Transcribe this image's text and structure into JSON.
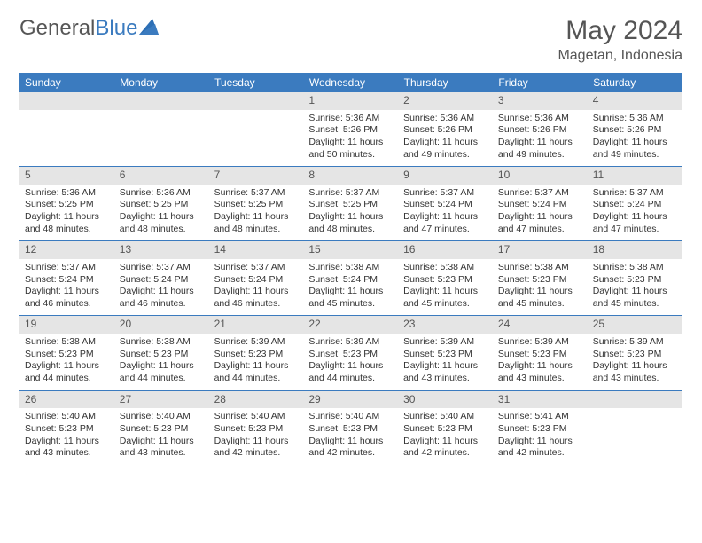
{
  "brand": {
    "part1": "General",
    "part2": "Blue"
  },
  "title": "May 2024",
  "location": "Magetan, Indonesia",
  "colors": {
    "header_bg": "#3b7bbf",
    "header_text": "#ffffff",
    "daynum_bg": "#e5e5e5",
    "row_border": "#3b7bbf",
    "text": "#333333",
    "title_text": "#555555"
  },
  "daysOfWeek": [
    "Sunday",
    "Monday",
    "Tuesday",
    "Wednesday",
    "Thursday",
    "Friday",
    "Saturday"
  ],
  "weeks": [
    [
      null,
      null,
      null,
      {
        "n": "1",
        "sr": "5:36 AM",
        "ss": "5:26 PM",
        "dl": "11 hours and 50 minutes."
      },
      {
        "n": "2",
        "sr": "5:36 AM",
        "ss": "5:26 PM",
        "dl": "11 hours and 49 minutes."
      },
      {
        "n": "3",
        "sr": "5:36 AM",
        "ss": "5:26 PM",
        "dl": "11 hours and 49 minutes."
      },
      {
        "n": "4",
        "sr": "5:36 AM",
        "ss": "5:26 PM",
        "dl": "11 hours and 49 minutes."
      }
    ],
    [
      {
        "n": "5",
        "sr": "5:36 AM",
        "ss": "5:25 PM",
        "dl": "11 hours and 48 minutes."
      },
      {
        "n": "6",
        "sr": "5:36 AM",
        "ss": "5:25 PM",
        "dl": "11 hours and 48 minutes."
      },
      {
        "n": "7",
        "sr": "5:37 AM",
        "ss": "5:25 PM",
        "dl": "11 hours and 48 minutes."
      },
      {
        "n": "8",
        "sr": "5:37 AM",
        "ss": "5:25 PM",
        "dl": "11 hours and 48 minutes."
      },
      {
        "n": "9",
        "sr": "5:37 AM",
        "ss": "5:24 PM",
        "dl": "11 hours and 47 minutes."
      },
      {
        "n": "10",
        "sr": "5:37 AM",
        "ss": "5:24 PM",
        "dl": "11 hours and 47 minutes."
      },
      {
        "n": "11",
        "sr": "5:37 AM",
        "ss": "5:24 PM",
        "dl": "11 hours and 47 minutes."
      }
    ],
    [
      {
        "n": "12",
        "sr": "5:37 AM",
        "ss": "5:24 PM",
        "dl": "11 hours and 46 minutes."
      },
      {
        "n": "13",
        "sr": "5:37 AM",
        "ss": "5:24 PM",
        "dl": "11 hours and 46 minutes."
      },
      {
        "n": "14",
        "sr": "5:37 AM",
        "ss": "5:24 PM",
        "dl": "11 hours and 46 minutes."
      },
      {
        "n": "15",
        "sr": "5:38 AM",
        "ss": "5:24 PM",
        "dl": "11 hours and 45 minutes."
      },
      {
        "n": "16",
        "sr": "5:38 AM",
        "ss": "5:23 PM",
        "dl": "11 hours and 45 minutes."
      },
      {
        "n": "17",
        "sr": "5:38 AM",
        "ss": "5:23 PM",
        "dl": "11 hours and 45 minutes."
      },
      {
        "n": "18",
        "sr": "5:38 AM",
        "ss": "5:23 PM",
        "dl": "11 hours and 45 minutes."
      }
    ],
    [
      {
        "n": "19",
        "sr": "5:38 AM",
        "ss": "5:23 PM",
        "dl": "11 hours and 44 minutes."
      },
      {
        "n": "20",
        "sr": "5:38 AM",
        "ss": "5:23 PM",
        "dl": "11 hours and 44 minutes."
      },
      {
        "n": "21",
        "sr": "5:39 AM",
        "ss": "5:23 PM",
        "dl": "11 hours and 44 minutes."
      },
      {
        "n": "22",
        "sr": "5:39 AM",
        "ss": "5:23 PM",
        "dl": "11 hours and 44 minutes."
      },
      {
        "n": "23",
        "sr": "5:39 AM",
        "ss": "5:23 PM",
        "dl": "11 hours and 43 minutes."
      },
      {
        "n": "24",
        "sr": "5:39 AM",
        "ss": "5:23 PM",
        "dl": "11 hours and 43 minutes."
      },
      {
        "n": "25",
        "sr": "5:39 AM",
        "ss": "5:23 PM",
        "dl": "11 hours and 43 minutes."
      }
    ],
    [
      {
        "n": "26",
        "sr": "5:40 AM",
        "ss": "5:23 PM",
        "dl": "11 hours and 43 minutes."
      },
      {
        "n": "27",
        "sr": "5:40 AM",
        "ss": "5:23 PM",
        "dl": "11 hours and 43 minutes."
      },
      {
        "n": "28",
        "sr": "5:40 AM",
        "ss": "5:23 PM",
        "dl": "11 hours and 42 minutes."
      },
      {
        "n": "29",
        "sr": "5:40 AM",
        "ss": "5:23 PM",
        "dl": "11 hours and 42 minutes."
      },
      {
        "n": "30",
        "sr": "5:40 AM",
        "ss": "5:23 PM",
        "dl": "11 hours and 42 minutes."
      },
      {
        "n": "31",
        "sr": "5:41 AM",
        "ss": "5:23 PM",
        "dl": "11 hours and 42 minutes."
      },
      null
    ]
  ],
  "labels": {
    "sunrise": "Sunrise:",
    "sunset": "Sunset:",
    "daylight": "Daylight:"
  }
}
